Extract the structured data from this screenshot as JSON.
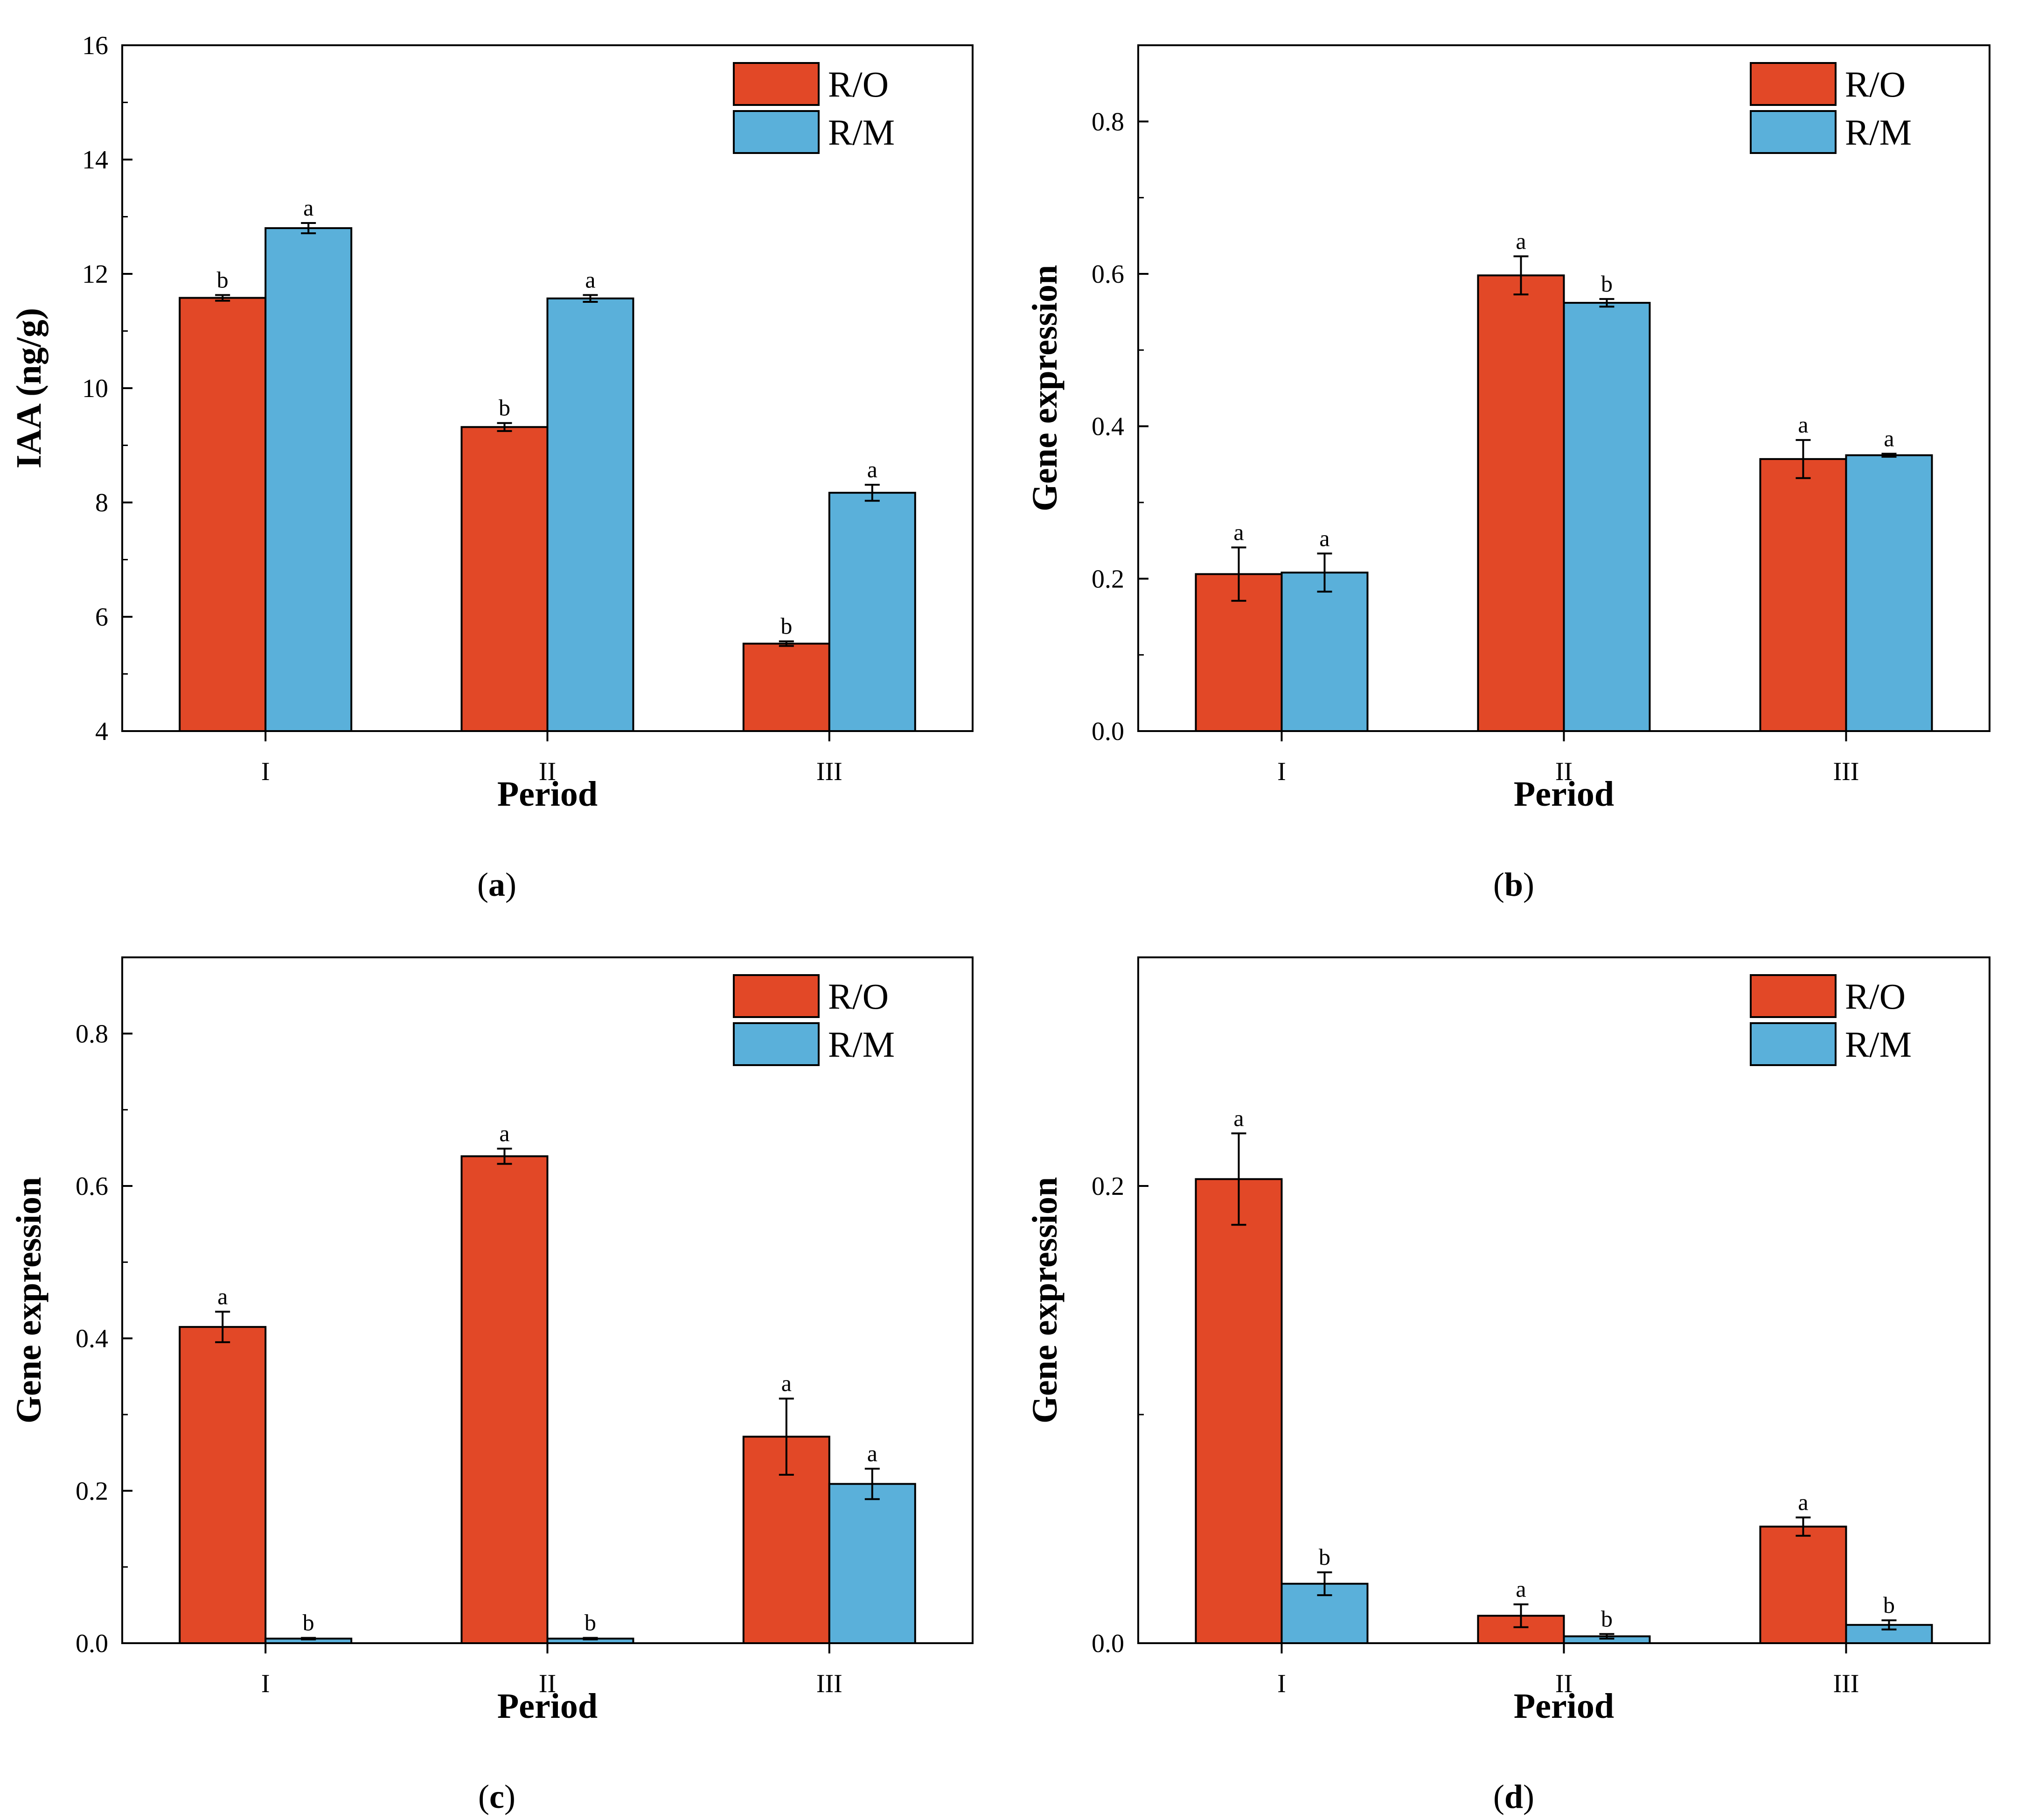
{
  "colors": {
    "ro": "#e24827",
    "rm": "#5ab0da"
  },
  "chart_data": [
    {
      "id": "a",
      "type": "bar",
      "caption_letter": "a",
      "xlabel": "Period",
      "ylabel": "IAA (ng/g)",
      "categories": [
        "I",
        "II",
        "III"
      ],
      "ylim": [
        4,
        16
      ],
      "yticks": [
        4,
        6,
        8,
        10,
        12,
        14,
        16
      ],
      "ytick_labels": [
        "4",
        "6",
        "8",
        "10",
        "12",
        "14",
        "16"
      ],
      "legend_position": "top-right",
      "series": [
        {
          "name": "R/O",
          "values": [
            11.58,
            9.32,
            5.53
          ],
          "errors": [
            0.05,
            0.07,
            0.04
          ],
          "letters": [
            "b",
            "b",
            "b"
          ]
        },
        {
          "name": "R/M",
          "values": [
            12.8,
            11.57,
            8.17
          ],
          "errors": [
            0.09,
            0.06,
            0.14
          ],
          "letters": [
            "a",
            "a",
            "a"
          ]
        }
      ]
    },
    {
      "id": "b",
      "type": "bar",
      "caption_letter": "b",
      "xlabel": "Period",
      "ylabel": "Gene expression",
      "categories": [
        "I",
        "II",
        "III"
      ],
      "ylim": [
        0,
        0.9
      ],
      "yticks": [
        0,
        0.2,
        0.4,
        0.6,
        0.8
      ],
      "ytick_labels": [
        "0.0",
        "0.2",
        "0.4",
        "0.6",
        "0.8"
      ],
      "legend_position": "top-right",
      "series": [
        {
          "name": "R/O",
          "values": [
            0.206,
            0.598,
            0.357
          ],
          "errors": [
            0.035,
            0.025,
            0.025
          ],
          "letters": [
            "a",
            "a",
            "a"
          ]
        },
        {
          "name": "R/M",
          "values": [
            0.208,
            0.562,
            0.362
          ],
          "errors": [
            0.025,
            0.005,
            0.002
          ],
          "letters": [
            "a",
            "b",
            "a"
          ]
        }
      ]
    },
    {
      "id": "c",
      "type": "bar",
      "caption_letter": "c",
      "xlabel": "Period",
      "ylabel": "Gene expression",
      "categories": [
        "I",
        "II",
        "III"
      ],
      "ylim": [
        0,
        0.9
      ],
      "yticks": [
        0,
        0.2,
        0.4,
        0.6,
        0.8
      ],
      "ytick_labels": [
        "0.0",
        "0.2",
        "0.4",
        "0.6",
        "0.8"
      ],
      "legend_position": "top-right",
      "series": [
        {
          "name": "R/O",
          "values": [
            0.415,
            0.639,
            0.271
          ],
          "errors": [
            0.02,
            0.01,
            0.05
          ],
          "letters": [
            "a",
            "a",
            "a"
          ]
        },
        {
          "name": "R/M",
          "values": [
            0.006,
            0.006,
            0.209
          ],
          "errors": [
            0.001,
            0.001,
            0.02
          ],
          "letters": [
            "b",
            "b",
            "a"
          ]
        }
      ]
    },
    {
      "id": "d",
      "type": "bar",
      "caption_letter": "d",
      "xlabel": "Period",
      "ylabel": "Gene expression",
      "categories": [
        "I",
        "II",
        "III"
      ],
      "ylim": [
        0,
        0.3
      ],
      "yticks": [
        0,
        0.2
      ],
      "ytick_labels": [
        "0.0",
        "0.2"
      ],
      "legend_position": "top-right",
      "series": [
        {
          "name": "R/O",
          "values": [
            0.203,
            0.012,
            0.051
          ],
          "errors": [
            0.02,
            0.005,
            0.004
          ],
          "letters": [
            "a",
            "a",
            "a"
          ]
        },
        {
          "name": "R/M",
          "values": [
            0.026,
            0.003,
            0.008
          ],
          "errors": [
            0.005,
            0.001,
            0.002
          ],
          "letters": [
            "b",
            "b",
            "b"
          ]
        }
      ]
    }
  ]
}
